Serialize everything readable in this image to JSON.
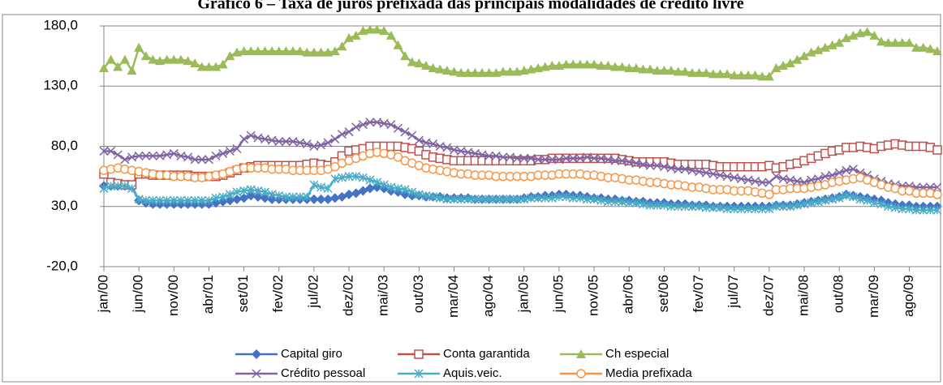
{
  "chart_data": {
    "type": "line",
    "title": "Gráfico 6 – Taxa de juros prefixada das principais modalidades de crédito livre",
    "categories": [
      "jan/00",
      null,
      null,
      null,
      null,
      "jun/00",
      null,
      null,
      null,
      null,
      "nov/00",
      null,
      null,
      null,
      null,
      "abr/01",
      null,
      null,
      null,
      null,
      "set/01",
      null,
      null,
      null,
      null,
      "fev/02",
      null,
      null,
      null,
      null,
      "jul/02",
      null,
      null,
      null,
      null,
      "dez/02",
      null,
      null,
      null,
      null,
      "mai/03",
      null,
      null,
      null,
      null,
      "out/03",
      null,
      null,
      null,
      null,
      "mar/04",
      null,
      null,
      null,
      null,
      "ago/04",
      null,
      null,
      null,
      null,
      "jan/05",
      null,
      null,
      null,
      null,
      "jun/05",
      null,
      null,
      null,
      null,
      "nov/05",
      null,
      null,
      null,
      null,
      "abr/06",
      null,
      null,
      null,
      null,
      "set/06",
      null,
      null,
      null,
      null,
      "fev/07",
      null,
      null,
      null,
      null,
      "jul/07",
      null,
      null,
      null,
      null,
      "dez/07",
      null,
      null,
      null,
      null,
      "mai/08",
      null,
      null,
      null,
      null,
      "out/08",
      null,
      null,
      null,
      null,
      "mar/09",
      null,
      null,
      null,
      null,
      "ago/09",
      null,
      null,
      null,
      null
    ],
    "ylim": [
      -20,
      180
    ],
    "yticks": [
      {
        "value": -20,
        "label": "-20,0"
      },
      {
        "value": 30,
        "label": "30,0"
      },
      {
        "value": 80,
        "label": "80,0"
      },
      {
        "value": 130,
        "label": "130,0"
      },
      {
        "value": 180,
        "label": "180,0"
      }
    ],
    "grid": true,
    "legend": "bottom",
    "series": [
      {
        "name": "Capital giro",
        "color": "#4472c4",
        "marker": "diamond",
        "values": [
          47,
          47,
          47,
          47,
          47,
          35,
          33,
          32,
          32,
          32,
          32,
          32,
          32,
          32,
          32,
          32,
          33,
          34,
          35,
          36,
          37,
          39,
          38,
          37,
          36,
          36,
          36,
          36,
          36,
          36,
          36,
          36,
          36,
          37,
          38,
          40,
          41,
          43,
          45,
          46,
          45,
          43,
          42,
          40,
          39,
          39,
          38,
          38,
          38,
          37,
          37,
          37,
          37,
          36,
          36,
          36,
          36,
          36,
          36,
          36,
          37,
          38,
          38,
          39,
          39,
          40,
          40,
          39,
          39,
          38,
          37,
          37,
          36,
          36,
          35,
          35,
          34,
          34,
          33,
          33,
          33,
          32,
          32,
          32,
          31,
          31,
          31,
          30,
          30,
          30,
          30,
          30,
          30,
          30,
          30,
          30,
          31,
          31,
          31,
          32,
          33,
          34,
          35,
          36,
          37,
          38,
          40,
          39,
          38,
          37,
          36,
          35,
          33,
          32,
          31,
          31,
          30,
          30,
          30,
          30
        ]
      },
      {
        "name": "Conta garantida",
        "color": "#c0504d",
        "marker": "square",
        "values": [
          57,
          50,
          49,
          48,
          48,
          57,
          57,
          56,
          56,
          56,
          56,
          56,
          56,
          55,
          55,
          55,
          55,
          56,
          58,
          60,
          62,
          63,
          64,
          64,
          64,
          64,
          64,
          64,
          64,
          65,
          66,
          65,
          64,
          67,
          72,
          76,
          77,
          78,
          80,
          80,
          80,
          80,
          80,
          79,
          78,
          76,
          73,
          71,
          70,
          69,
          68,
          68,
          68,
          68,
          68,
          68,
          68,
          68,
          68,
          68,
          68,
          68,
          69,
          69,
          70,
          70,
          70,
          70,
          70,
          70,
          70,
          70,
          70,
          70,
          69,
          68,
          67,
          67,
          67,
          67,
          67,
          66,
          65,
          65,
          65,
          65,
          65,
          64,
          63,
          63,
          63,
          63,
          63,
          63,
          63,
          64,
          62,
          63,
          65,
          66,
          68,
          70,
          72,
          74,
          76,
          77,
          79,
          79,
          80,
          79,
          78,
          80,
          81,
          82,
          81,
          80,
          80,
          80,
          79,
          77
        ]
      },
      {
        "name": "Ch especial",
        "color": "#9bbb59",
        "marker": "triangle",
        "values": [
          145,
          152,
          146,
          152,
          143,
          162,
          155,
          152,
          151,
          152,
          152,
          152,
          151,
          149,
          146,
          146,
          146,
          148,
          155,
          158,
          159,
          159,
          159,
          159,
          159,
          159,
          159,
          159,
          159,
          158,
          158,
          158,
          158,
          159,
          163,
          170,
          172,
          176,
          177,
          177,
          176,
          172,
          164,
          155,
          150,
          149,
          147,
          145,
          144,
          143,
          142,
          141,
          141,
          141,
          141,
          141,
          141,
          142,
          142,
          142,
          143,
          144,
          145,
          146,
          147,
          147,
          148,
          148,
          148,
          148,
          148,
          147,
          147,
          146,
          146,
          145,
          145,
          144,
          144,
          143,
          143,
          143,
          142,
          142,
          141,
          141,
          141,
          140,
          140,
          140,
          139,
          139,
          139,
          139,
          138,
          138,
          145,
          147,
          149,
          152,
          155,
          158,
          160,
          162,
          164,
          166,
          170,
          172,
          174,
          175,
          172,
          167,
          166,
          166,
          166,
          166,
          162,
          162,
          161,
          159
        ]
      },
      {
        "name": "Crédito pessoal",
        "color": "#8064a2",
        "marker": "x",
        "values": [
          76,
          76,
          73,
          69,
          71,
          72,
          72,
          72,
          72,
          73,
          74,
          72,
          71,
          69,
          69,
          69,
          72,
          74,
          76,
          78,
          86,
          89,
          87,
          86,
          85,
          84,
          84,
          84,
          83,
          82,
          80,
          81,
          83,
          86,
          90,
          92,
          96,
          98,
          100,
          100,
          99,
          98,
          95,
          92,
          89,
          85,
          83,
          82,
          80,
          79,
          77,
          76,
          75,
          74,
          73,
          72,
          72,
          71,
          71,
          70,
          70,
          70,
          69,
          69,
          69,
          69,
          70,
          70,
          70,
          71,
          70,
          70,
          69,
          68,
          68,
          67,
          66,
          65,
          64,
          64,
          63,
          62,
          61,
          61,
          60,
          59,
          58,
          57,
          56,
          55,
          54,
          53,
          52,
          51,
          50,
          50,
          55,
          53,
          52,
          51,
          50,
          52,
          53,
          55,
          56,
          58,
          60,
          61,
          58,
          56,
          53,
          51,
          49,
          48,
          47,
          47,
          46,
          46,
          46,
          46
        ]
      },
      {
        "name": "Aquis.veic.",
        "color": "#4bacc6",
        "marker": "asterisk",
        "values": [
          45,
          47,
          47,
          47,
          45,
          36,
          35,
          35,
          35,
          35,
          35,
          35,
          35,
          35,
          35,
          35,
          37,
          38,
          40,
          42,
          43,
          44,
          43,
          42,
          40,
          39,
          38,
          38,
          38,
          38,
          48,
          46,
          45,
          53,
          54,
          55,
          55,
          54,
          52,
          50,
          48,
          46,
          45,
          44,
          42,
          40,
          39,
          38,
          37,
          36,
          36,
          36,
          36,
          36,
          36,
          36,
          36,
          36,
          36,
          36,
          36,
          37,
          37,
          37,
          37,
          38,
          38,
          37,
          37,
          36,
          36,
          35,
          34,
          34,
          34,
          33,
          33,
          32,
          31,
          31,
          31,
          30,
          30,
          30,
          30,
          30,
          29,
          29,
          29,
          28,
          28,
          28,
          28,
          28,
          28,
          28,
          30,
          30,
          30,
          31,
          32,
          33,
          34,
          35,
          36,
          37,
          39,
          38,
          36,
          35,
          33,
          32,
          30,
          29,
          28,
          28,
          27,
          27,
          27,
          27
        ]
      },
      {
        "name": "Media prefixada",
        "color": "#f79646",
        "marker": "circle",
        "values": [
          60,
          61,
          62,
          61,
          60,
          59,
          58,
          57,
          56,
          56,
          55,
          55,
          55,
          54,
          54,
          55,
          56,
          57,
          59,
          61,
          62,
          62,
          62,
          62,
          61,
          61,
          61,
          60,
          60,
          60,
          60,
          60,
          61,
          63,
          66,
          68,
          70,
          72,
          74,
          75,
          74,
          73,
          71,
          68,
          66,
          64,
          62,
          61,
          60,
          59,
          58,
          57,
          57,
          56,
          56,
          56,
          55,
          55,
          55,
          55,
          55,
          55,
          56,
          56,
          56,
          57,
          57,
          57,
          57,
          56,
          56,
          55,
          54,
          54,
          53,
          52,
          52,
          51,
          50,
          50,
          49,
          48,
          48,
          47,
          46,
          46,
          45,
          44,
          44,
          44,
          43,
          43,
          43,
          42,
          41,
          40,
          44,
          44,
          45,
          45,
          45,
          46,
          47,
          48,
          50,
          51,
          52,
          53,
          54,
          52,
          50,
          48,
          46,
          45,
          43,
          43,
          41,
          41,
          41,
          40
        ]
      }
    ]
  }
}
